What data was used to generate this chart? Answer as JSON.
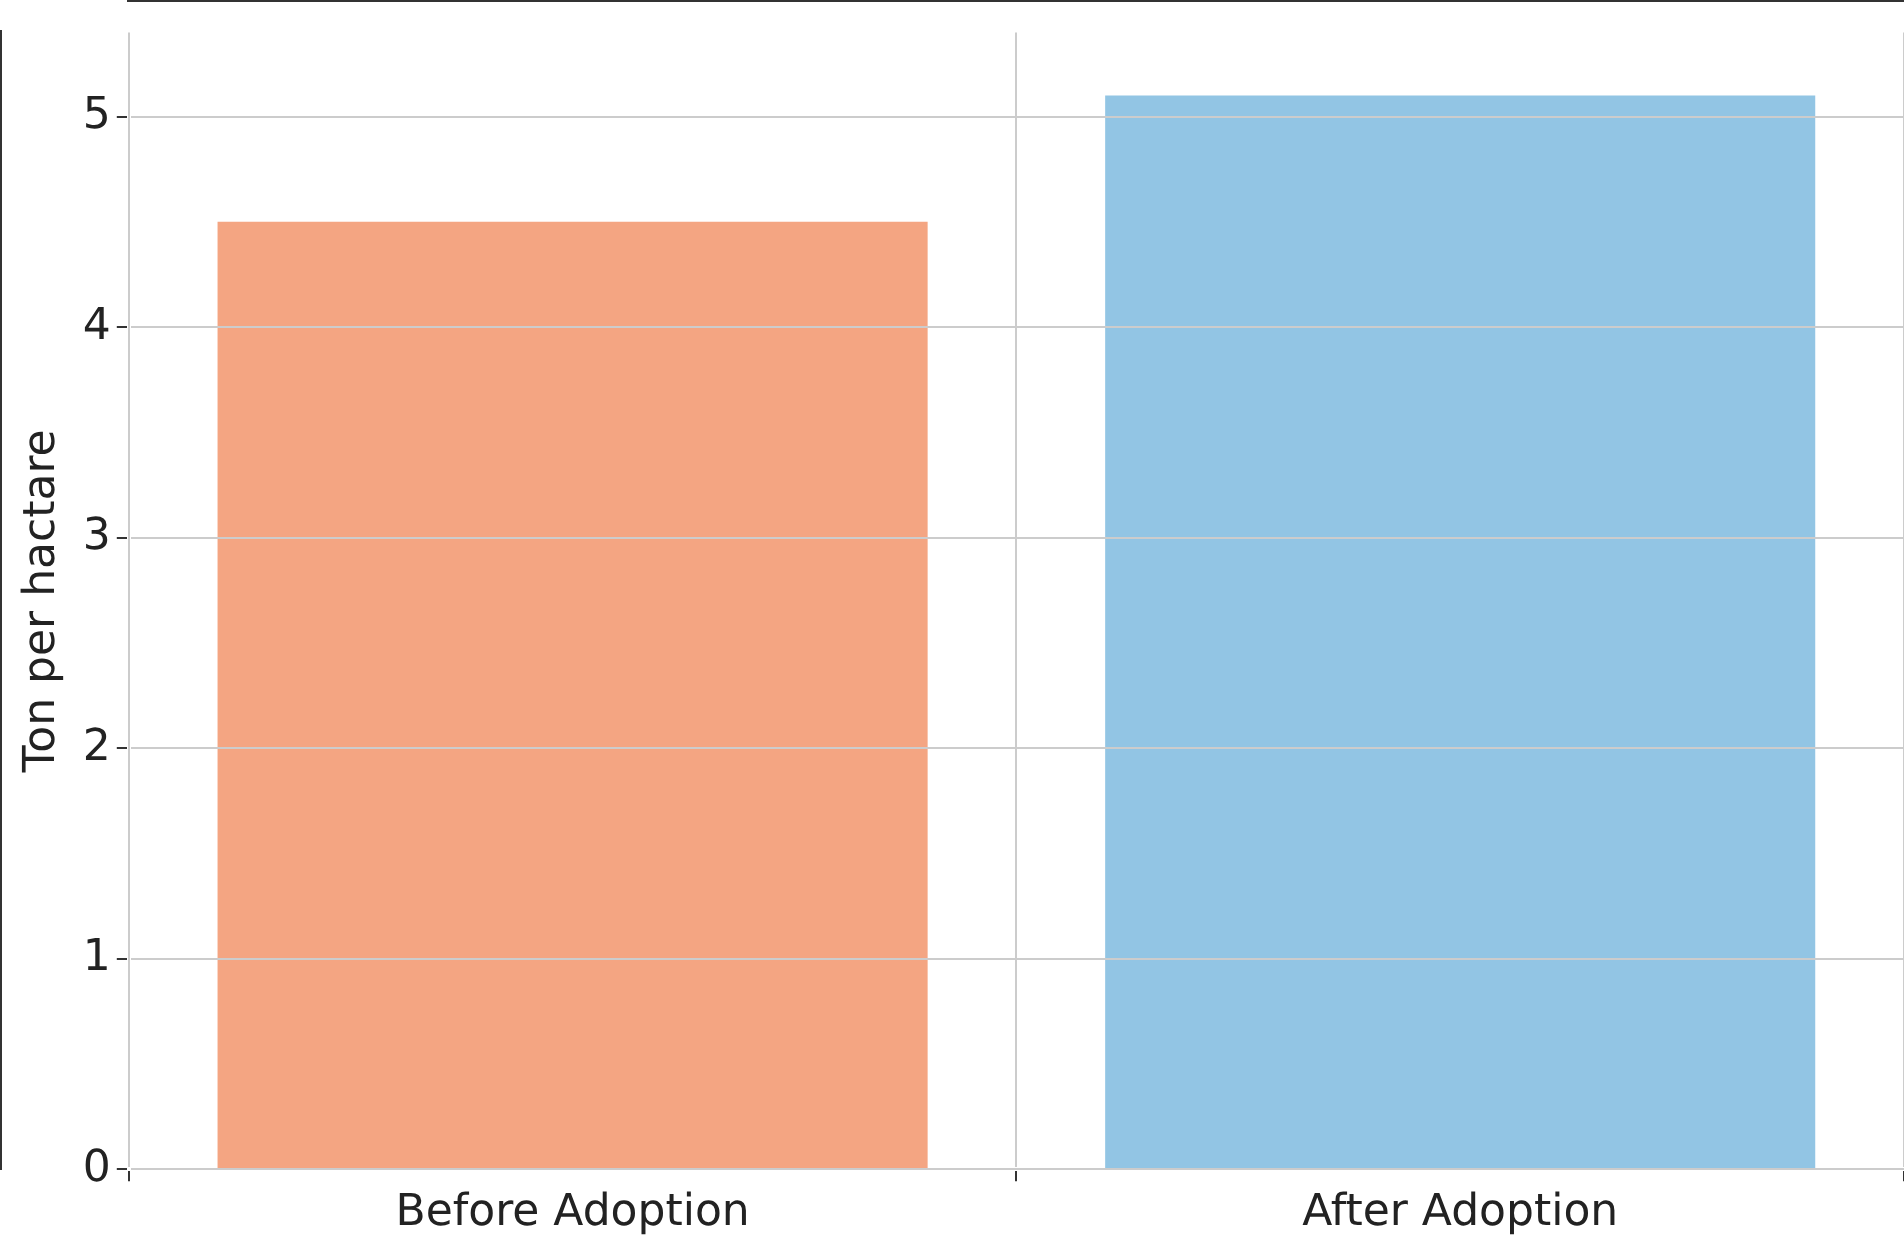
{
  "chart_data": {
    "type": "bar",
    "ylabel": "Ton per hactare",
    "categories": [
      "Before Adoption",
      "After Adoption"
    ],
    "values": [
      4.5,
      5.1
    ],
    "colors": [
      "#f4a582",
      "#92c5e4"
    ],
    "ylim": [
      0,
      5.4
    ],
    "yticks": [
      0,
      1,
      2,
      3,
      4,
      5
    ],
    "grid": true
  }
}
